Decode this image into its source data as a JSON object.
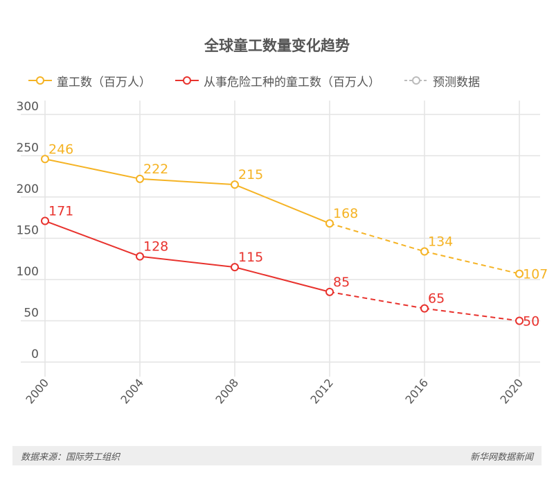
{
  "colors": {
    "series1": "#f5b324",
    "series2": "#e8322d",
    "forecast": "#bbbbbb",
    "grid": "#e3e3e3",
    "axis_text": "#555555"
  },
  "legend": [
    {
      "label": "童工数（百万人）",
      "style": "solid",
      "color": "#f5b324"
    },
    {
      "label": "从事危险工种的童工数（百万人）",
      "style": "solid",
      "color": "#e8322d"
    },
    {
      "label": "预测数据",
      "style": "dashed",
      "color": "#bbbbbb"
    }
  ],
  "footer": {
    "source": "数据来源：国际劳工组织",
    "brand": "新华网数据新闻"
  },
  "chart_data": {
    "type": "line",
    "title": "全球童工数量变化趋势",
    "xlabel": "",
    "ylabel": "",
    "categories": [
      "2000",
      "2004",
      "2008",
      "2012",
      "2016",
      "2020"
    ],
    "ylim": [
      0,
      300
    ],
    "yticks": [
      "0",
      "50",
      "100",
      "150",
      "200",
      "250",
      "300"
    ],
    "grid": true,
    "legend_position": "top-left",
    "forecast_from_index": 3,
    "series": [
      {
        "name": "童工数（百万人）",
        "values": [
          246,
          222,
          215,
          168,
          134,
          107
        ],
        "labels": [
          "246",
          "222",
          "215",
          "168",
          "134",
          "107"
        ]
      },
      {
        "name": "从事危险工种的童工数（百万人）",
        "values": [
          171,
          128,
          115,
          85,
          65,
          50
        ],
        "labels": [
          "171",
          "128",
          "115",
          "85",
          "65",
          "50"
        ]
      }
    ]
  }
}
